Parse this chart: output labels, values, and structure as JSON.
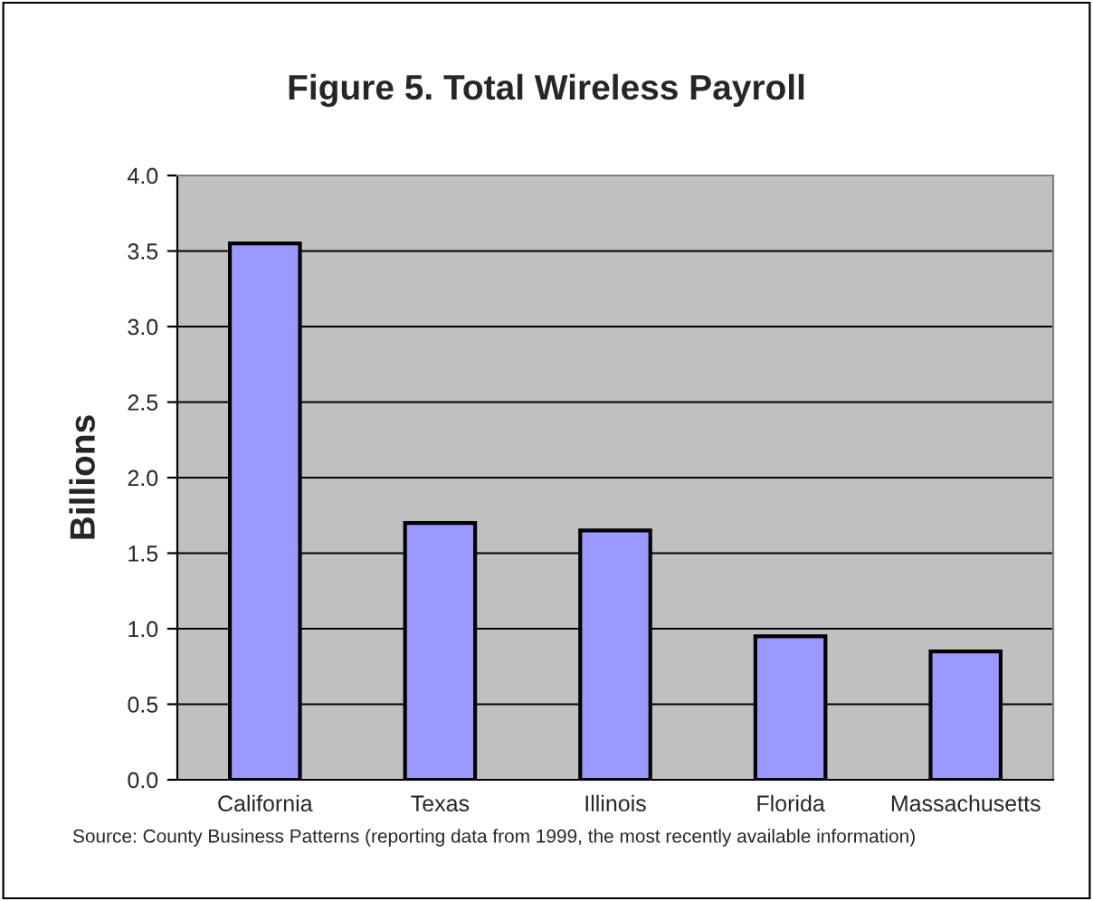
{
  "chart_data": {
    "type": "bar",
    "title": "Figure 5. Total Wireless Payroll",
    "ylabel": "Billions",
    "categories": [
      "California",
      "Texas",
      "Illinois",
      "Florida",
      "Massachusetts"
    ],
    "values": [
      3.55,
      1.7,
      1.65,
      0.95,
      0.85
    ],
    "color": "#9999ff",
    "ylim": [
      0,
      4
    ],
    "yticks": [
      {
        "value": 0,
        "label": "0.0"
      },
      {
        "value": 0.5,
        "label": "0.5"
      },
      {
        "value": 1,
        "label": "1.0"
      },
      {
        "value": 1.5,
        "label": "1.5"
      },
      {
        "value": 2,
        "label": "2.0"
      },
      {
        "value": 2.5,
        "label": "2.5"
      },
      {
        "value": 3,
        "label": "3.0"
      },
      {
        "value": 3.5,
        "label": "3.5"
      },
      {
        "value": 4,
        "label": "4.0"
      }
    ],
    "grid": "y",
    "annotations": [
      "Source: County Business Patterns (reporting data from 1999, the most recently available information)"
    ]
  }
}
